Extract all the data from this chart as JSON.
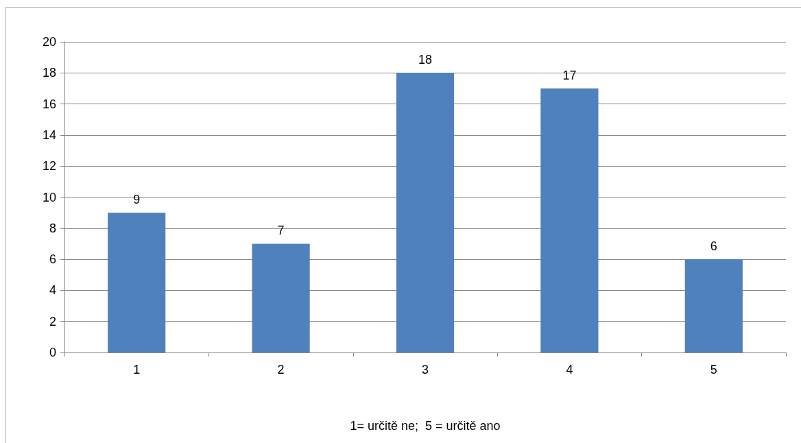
{
  "chart_data": {
    "type": "bar",
    "xlabel": "1= určitě ne;  5 = určitě ano",
    "categories": [
      "1",
      "2",
      "3",
      "4",
      "5"
    ],
    "values": [
      9,
      7,
      18,
      17,
      6
    ],
    "color": "#4f81bd",
    "ylim": [
      0,
      20
    ],
    "yticks": [
      0,
      2,
      4,
      6,
      8,
      10,
      12,
      14,
      16,
      18,
      20
    ],
    "grid": "y",
    "data_labels": true
  }
}
